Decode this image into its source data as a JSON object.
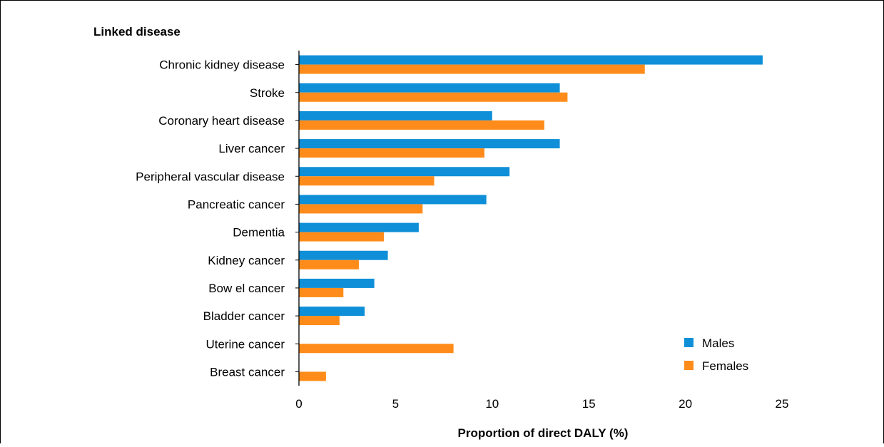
{
  "chart_data": {
    "type": "bar",
    "orientation": "horizontal",
    "y_axis_title": "Linked disease",
    "xlabel": "Proportion of direct DALY (%)",
    "categories": [
      "Chronic kidney disease",
      "Stroke",
      "Coronary heart disease",
      "Liver cancer",
      "Peripheral vascular disease",
      "Pancreatic cancer",
      "Dementia",
      "Kidney cancer",
      "Bow el cancer",
      "Bladder cancer",
      "Uterine cancer",
      "Breast cancer"
    ],
    "series": [
      {
        "name": "Males",
        "color": "#0f8fd8",
        "values": [
          24.0,
          13.5,
          10.0,
          13.5,
          10.9,
          9.7,
          6.2,
          4.6,
          3.9,
          3.4,
          null,
          null
        ]
      },
      {
        "name": "Females",
        "color": "#ff8c1a",
        "values": [
          17.9,
          13.9,
          12.7,
          9.6,
          7.0,
          6.4,
          4.4,
          3.1,
          2.3,
          2.1,
          8.0,
          1.4
        ]
      }
    ],
    "xlim": [
      0,
      25
    ],
    "xticks": [
      "0",
      "5",
      "10",
      "15",
      "20",
      "25"
    ],
    "grid": false,
    "legend_position": "bottom-right"
  }
}
